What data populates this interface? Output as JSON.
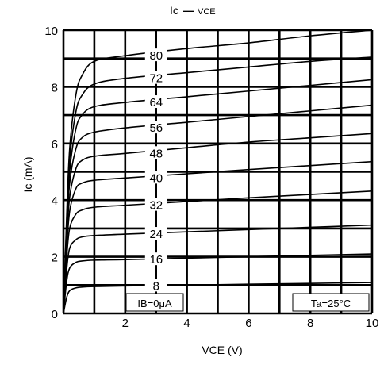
{
  "chart_data": {
    "type": "line",
    "title": "Ic — VCE",
    "title_main": "Ic",
    "title_dash": "—",
    "title_secondary": "VCE",
    "xlabel": "VCE (V)",
    "ylabel": "Ic (mA)",
    "xlim": [
      0,
      10
    ],
    "ylim": [
      0,
      10
    ],
    "x_ticks": [
      0,
      2,
      4,
      6,
      8,
      10
    ],
    "x_tick_labels": [
      "2",
      "4",
      "6",
      "8",
      "10"
    ],
    "y_ticks": [
      0,
      2,
      4,
      6,
      8,
      10
    ],
    "y_tick_labels": [
      "0",
      "2",
      "4",
      "6",
      "8",
      "10"
    ],
    "grid": true,
    "grid_step": 1,
    "legend": "inline curve labels",
    "annotations": {
      "ib_zero": "IB=0μA",
      "temperature": "Ta=25°C"
    },
    "series": [
      {
        "name": "8",
        "x": [
          0,
          0.1,
          0.2,
          0.4,
          0.6,
          1.0,
          2,
          4,
          6,
          8,
          10
        ],
        "values": [
          0,
          0.55,
          0.8,
          0.9,
          0.93,
          0.95,
          0.97,
          1.0,
          1.03,
          1.06,
          1.09
        ]
      },
      {
        "name": "16",
        "x": [
          0,
          0.1,
          0.2,
          0.4,
          0.6,
          1.0,
          2,
          4,
          6,
          8,
          10
        ],
        "values": [
          0,
          1.1,
          1.6,
          1.8,
          1.85,
          1.88,
          1.9,
          1.95,
          2.0,
          2.05,
          2.1
        ]
      },
      {
        "name": "24",
        "x": [
          0,
          0.1,
          0.2,
          0.4,
          0.6,
          1.0,
          2,
          4,
          6,
          8,
          10
        ],
        "values": [
          0,
          1.5,
          2.3,
          2.6,
          2.7,
          2.75,
          2.8,
          2.88,
          2.96,
          3.04,
          3.12
        ]
      },
      {
        "name": "32",
        "x": [
          0,
          0.1,
          0.2,
          0.4,
          0.6,
          1.0,
          2,
          4,
          6,
          8,
          10
        ],
        "values": [
          0,
          1.9,
          3.0,
          3.5,
          3.65,
          3.75,
          3.82,
          3.95,
          4.08,
          4.2,
          4.32
        ]
      },
      {
        "name": "40",
        "x": [
          0,
          0.1,
          0.2,
          0.4,
          0.6,
          1.0,
          2,
          4,
          6,
          8,
          10
        ],
        "values": [
          0,
          2.2,
          3.6,
          4.4,
          4.6,
          4.7,
          4.78,
          4.93,
          5.08,
          5.22,
          5.36
        ]
      },
      {
        "name": "48",
        "x": [
          0,
          0.1,
          0.2,
          0.4,
          0.6,
          1.0,
          2,
          4,
          6,
          8,
          10
        ],
        "values": [
          0,
          2.5,
          4.1,
          5.1,
          5.4,
          5.55,
          5.65,
          5.85,
          6.05,
          6.2,
          6.35
        ]
      },
      {
        "name": "56",
        "x": [
          0,
          0.1,
          0.2,
          0.4,
          0.6,
          1.0,
          2,
          4,
          6,
          8,
          10
        ],
        "values": [
          0,
          2.7,
          4.6,
          5.8,
          6.2,
          6.4,
          6.55,
          6.75,
          6.95,
          7.15,
          7.35
        ]
      },
      {
        "name": "64",
        "x": [
          0,
          0.1,
          0.2,
          0.4,
          0.6,
          1.0,
          2,
          4,
          6,
          8,
          10
        ],
        "values": [
          0,
          2.9,
          5.0,
          6.5,
          7.0,
          7.3,
          7.45,
          7.65,
          7.85,
          8.05,
          8.25
        ]
      },
      {
        "name": "72",
        "x": [
          0,
          0.1,
          0.2,
          0.4,
          0.6,
          1.0,
          2,
          4,
          6,
          8,
          10
        ],
        "values": [
          0,
          3.1,
          5.4,
          7.1,
          7.7,
          8.1,
          8.3,
          8.5,
          8.7,
          8.9,
          9.05
        ]
      },
      {
        "name": "80",
        "x": [
          0,
          0.1,
          0.2,
          0.4,
          0.6,
          1.0,
          2,
          4,
          6,
          8,
          10
        ],
        "values": [
          0,
          3.3,
          5.8,
          7.7,
          8.4,
          8.9,
          9.1,
          9.35,
          9.55,
          9.8,
          10.0
        ]
      }
    ],
    "curve_label_x": 2.0
  },
  "colors": {
    "line": "#000000",
    "background": "#ffffff"
  }
}
